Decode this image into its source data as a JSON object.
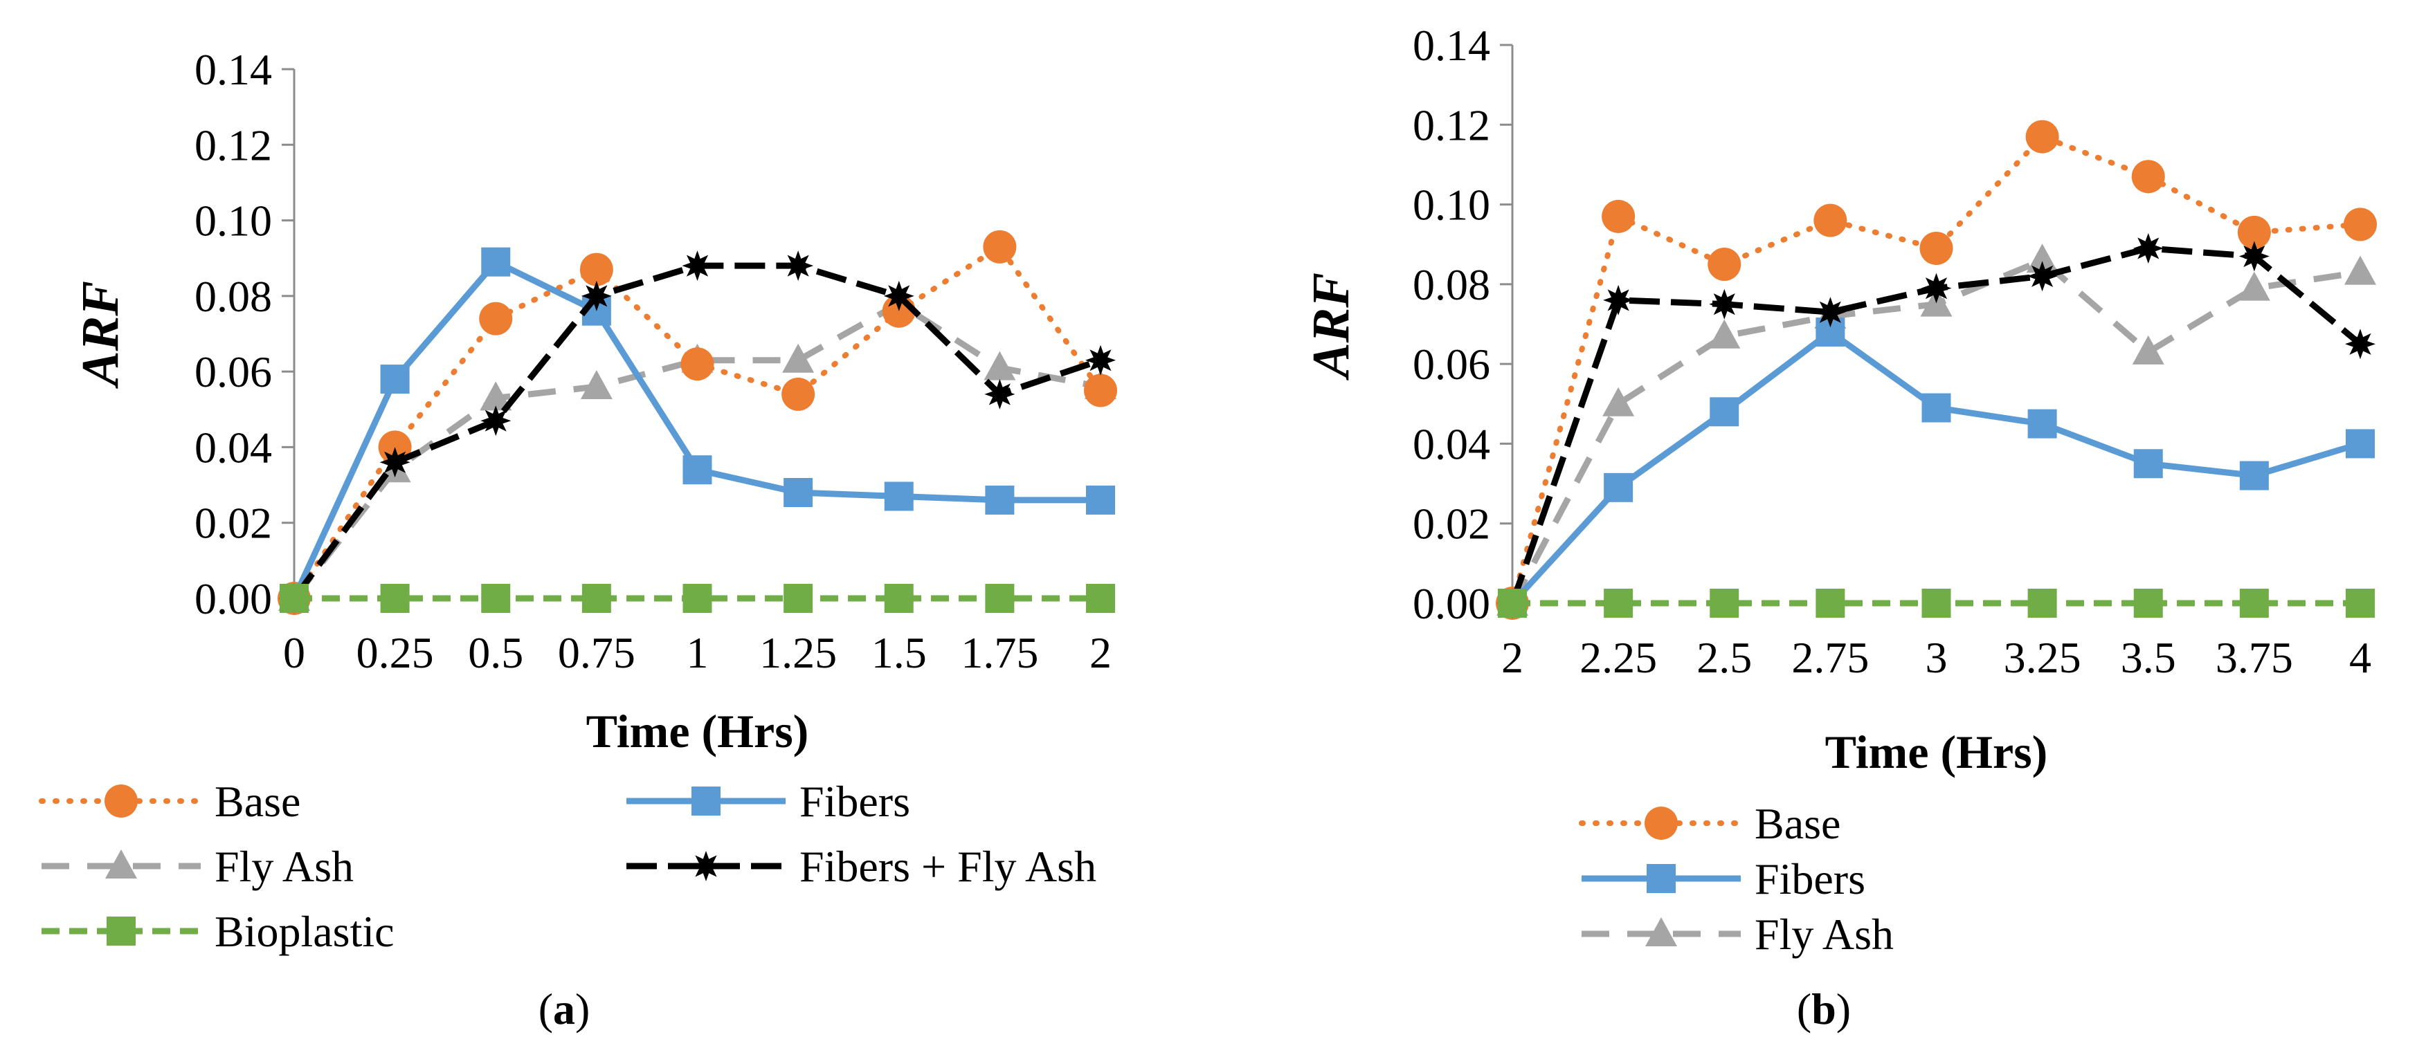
{
  "chart_data": [
    {
      "type": "line",
      "panel_label": "a",
      "title": "",
      "xlabel": "Time (Hrs)",
      "ylabel": "ARF",
      "categories": [
        "0",
        "0.25",
        "0.5",
        "0.75",
        "1",
        "1.25",
        "1.5",
        "1.75",
        "2"
      ],
      "ylim": [
        0,
        0.14
      ],
      "yticks": [
        "0.00",
        "0.02",
        "0.04",
        "0.06",
        "0.08",
        "0.10",
        "0.12",
        "0.14"
      ],
      "legend_position": "bottom",
      "series": [
        {
          "name": "Base",
          "values": [
            0.0,
            0.04,
            0.074,
            0.087,
            0.062,
            0.054,
            0.076,
            0.093,
            0.055
          ]
        },
        {
          "name": "Fibers",
          "values": [
            0.0,
            0.058,
            0.089,
            0.076,
            0.034,
            0.028,
            0.027,
            0.026,
            0.026
          ]
        },
        {
          "name": "Fly Ash",
          "values": [
            0.0,
            0.034,
            0.053,
            0.056,
            0.063,
            0.063,
            0.078,
            0.061,
            0.056
          ]
        },
        {
          "name": "Fibers + Fly Ash",
          "values": [
            0.0,
            0.036,
            0.047,
            0.08,
            0.088,
            0.088,
            0.08,
            0.054,
            0.063
          ]
        },
        {
          "name": "Bioplastic",
          "values": [
            0.0,
            0.0,
            0.0,
            0.0,
            0.0,
            0.0,
            0.0,
            0.0,
            0.0
          ]
        }
      ]
    },
    {
      "type": "line",
      "panel_label": "b",
      "title": "",
      "xlabel": "Time (Hrs)",
      "ylabel": "ARF",
      "categories": [
        "2",
        "2.25",
        "2.5",
        "2.75",
        "3",
        "3.25",
        "3.5",
        "3.75",
        "4"
      ],
      "ylim": [
        0,
        0.14
      ],
      "yticks": [
        "0.00",
        "0.02",
        "0.04",
        "0.06",
        "0.08",
        "0.10",
        "0.12",
        "0.14"
      ],
      "legend_position": "bottom",
      "series": [
        {
          "name": "Base",
          "values": [
            0.0,
            0.097,
            0.085,
            0.096,
            0.089,
            0.117,
            0.107,
            0.093,
            0.095
          ]
        },
        {
          "name": "Fibers",
          "values": [
            0.0,
            0.029,
            0.048,
            0.068,
            0.049,
            0.045,
            0.035,
            0.032,
            0.04
          ]
        },
        {
          "name": "Fly Ash",
          "values": [
            0.0,
            0.05,
            0.067,
            0.072,
            0.075,
            0.086,
            0.063,
            0.079,
            0.083
          ]
        },
        {
          "name": "Fibers + Fly Ash",
          "values": [
            0.0,
            0.076,
            0.075,
            0.073,
            0.079,
            0.082,
            0.089,
            0.087,
            0.065
          ]
        },
        {
          "name": "Bioplastic",
          "values": [
            0.0,
            0.0,
            0.0,
            0.0,
            0.0,
            0.0,
            0.0,
            0.0,
            0.0
          ]
        }
      ]
    }
  ],
  "styles": {
    "Base": {
      "color": "#ED7D31",
      "dash": "dotted",
      "marker": "circle"
    },
    "Fibers": {
      "color": "#5B9BD5",
      "dash": "solid",
      "marker": "square"
    },
    "Fly Ash": {
      "color": "#A5A5A5",
      "dash": "dashed",
      "marker": "triangle"
    },
    "Fibers + Fly Ash": {
      "color": "#000000",
      "dash": "longdash",
      "marker": "star"
    },
    "Bioplastic": {
      "color": "#70AD47",
      "dash": "shortdash",
      "marker": "square"
    }
  },
  "legends": [
    {
      "entries": [
        "Base",
        "Fibers",
        "Fly Ash",
        "Fibers + Fly Ash",
        "Bioplastic"
      ]
    },
    {
      "entries": [
        "Base",
        "Fibers",
        "Fly Ash"
      ]
    }
  ],
  "captions": [
    {
      "open": "(",
      "label": "a",
      "close": ")"
    },
    {
      "open": "(",
      "label": "b",
      "close": ")"
    }
  ]
}
